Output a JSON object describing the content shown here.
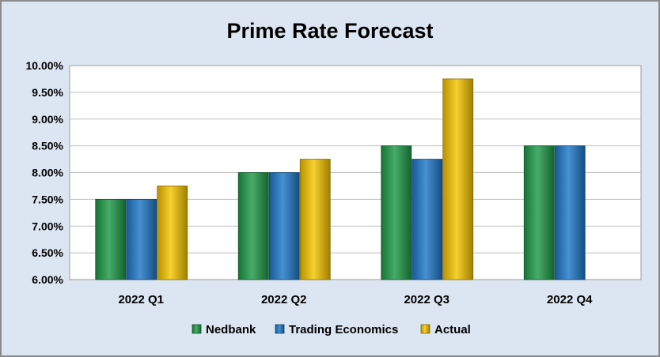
{
  "chart_data": {
    "type": "bar",
    "title": "Prime Rate Forecast",
    "categories": [
      "2022 Q1",
      "2022 Q2",
      "2022 Q3",
      "2022 Q4"
    ],
    "series": [
      {
        "name": "Nedbank",
        "values": [
          7.5,
          8.0,
          8.5,
          8.5
        ],
        "color": "#1e9a48"
      },
      {
        "name": "Trading Economics",
        "values": [
          7.5,
          8.0,
          8.25,
          8.5
        ],
        "color": "#1f78c8"
      },
      {
        "name": "Actual",
        "values": [
          7.75,
          8.25,
          9.75,
          null
        ],
        "color": "#f5c400"
      }
    ],
    "ylim": [
      6.0,
      10.0
    ],
    "yticks": [
      6.0,
      6.5,
      7.0,
      7.5,
      8.0,
      8.5,
      9.0,
      9.5,
      10.0
    ],
    "ytick_labels": [
      "6.00%",
      "6.50%",
      "7.00%",
      "7.50%",
      "8.00%",
      "8.50%",
      "9.00%",
      "9.50%",
      "10.00%"
    ],
    "grid": true,
    "legend_position": "bottom",
    "background_color": "#dce6f2",
    "plot_background": "#ffffff"
  }
}
